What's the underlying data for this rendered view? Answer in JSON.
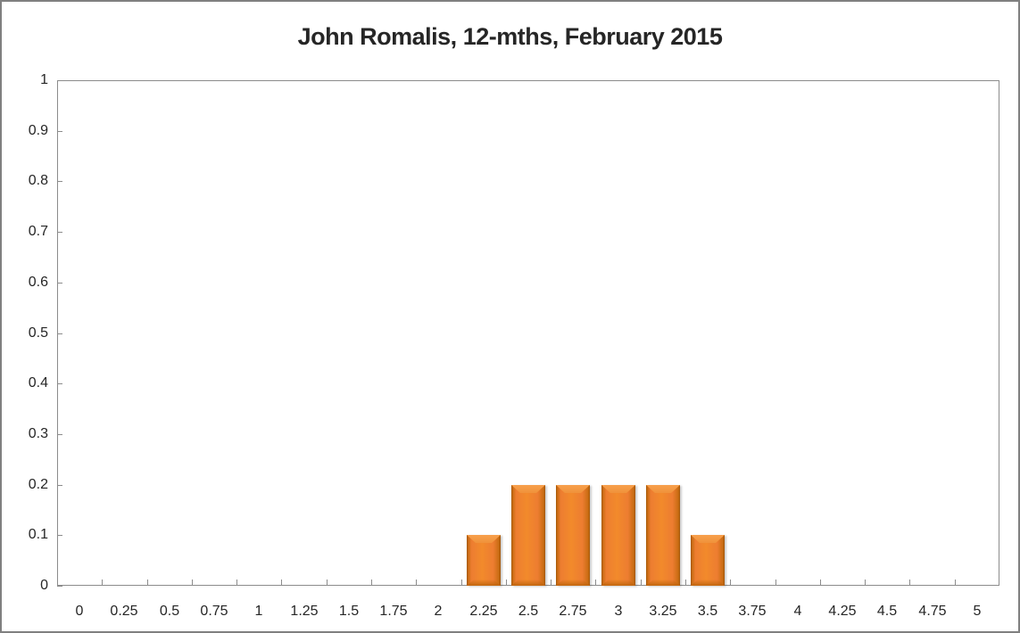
{
  "chart_data": {
    "type": "bar",
    "title": "John Romalis, 12-mths, February 2015",
    "xlabel": "",
    "ylabel": "",
    "categories": [
      "0",
      "0.25",
      "0.5",
      "0.75",
      "1",
      "1.25",
      "1.5",
      "1.75",
      "2",
      "2.25",
      "2.5",
      "2.75",
      "3",
      "3.25",
      "3.5",
      "3.75",
      "4",
      "4.25",
      "4.5",
      "4.75",
      "5"
    ],
    "values": [
      0,
      0,
      0,
      0,
      0,
      0,
      0,
      0,
      0,
      0.1,
      0.2,
      0.2,
      0.2,
      0.2,
      0.1,
      0,
      0,
      0,
      0,
      0,
      0
    ],
    "ylim": [
      0,
      1
    ],
    "ytick_labels": [
      "1",
      "0.9",
      "0.8",
      "0.7",
      "0.6",
      "0.5",
      "0.4",
      "0.3",
      "0.2",
      "0.1",
      "0"
    ],
    "grid": false,
    "legend": false,
    "bar_style": "beveled-3d"
  },
  "colors": {
    "bar_fill": "#ed7d31",
    "bar_fill_light": "#f79f4b",
    "bar_edge_dark": "#9e550a",
    "axis_line": "#8c8c8c",
    "frame_border": "#808080",
    "text": "#262626",
    "background": "#ffffff"
  }
}
